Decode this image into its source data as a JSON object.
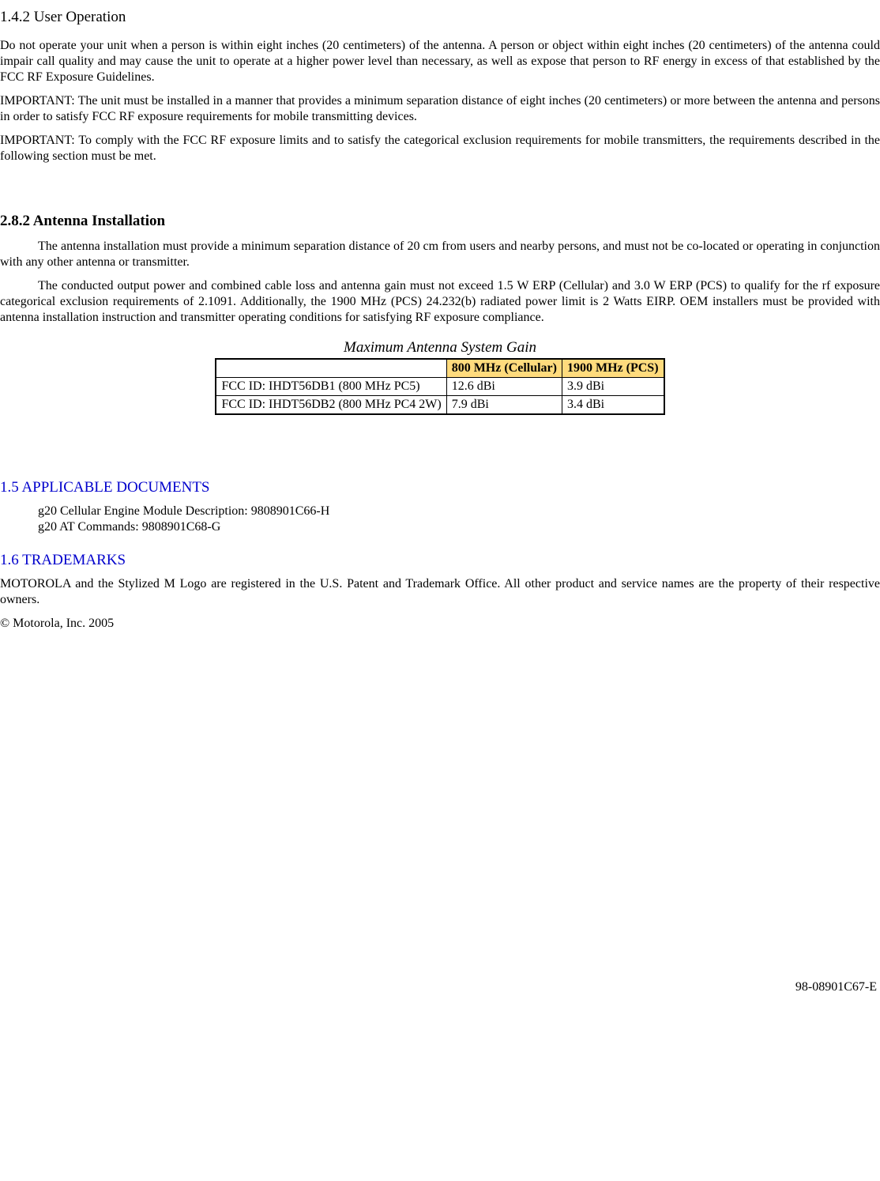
{
  "s142": {
    "heading": "1.4.2 User Operation",
    "p1": "Do not operate your unit when a person is within eight inches (20 centimeters) of the antenna. A person or object within eight inches (20 centimeters) of the antenna could impair call quality and may cause the unit to operate at a higher power level than necessary, as well as expose that person to RF energy in excess of that established by the FCC RF Exposure Guidelines.",
    "p2": "IMPORTANT: The unit must be installed in a manner that provides a minimum separation distance of eight inches (20 centimeters) or more between the antenna and persons in order to satisfy FCC RF exposure requirements for mobile transmitting devices.",
    "p3": "IMPORTANT: To comply with the FCC RF exposure limits and to satisfy the categorical exclusion requirements for mobile transmitters, the requirements described in the following section must be met."
  },
  "s282": {
    "heading": "2.8.2 Antenna Installation",
    "p1": "The antenna installation must provide a minimum separation distance of 20 cm from users and nearby persons, and must not be co-located or operating in conjunction with any other antenna or transmitter.",
    "p2": "The conducted output power and combined cable loss and antenna gain must not exceed 1.5 W ERP (Cellular) and 3.0 W ERP (PCS) to qualify for the rf exposure categorical exclusion requirements of 2.1091.  Additionally, the 1900 MHz (PCS) 24.232(b) radiated power limit is 2 Watts EIRP.   OEM installers must be provided with antenna installation instruction and transmitter operating conditions for satisfying RF exposure compliance."
  },
  "table": {
    "type": "table",
    "caption": "Maximum Antenna System Gain",
    "columns": [
      "",
      "800 MHz (Cellular)",
      "1900 MHz (PCS)"
    ],
    "header_bg": "#ffdb7d",
    "rows": [
      [
        "FCC ID: IHDT56DB1  (800 MHz PC5)",
        "12.6 dBi",
        "3.9 dBi"
      ],
      [
        "FCC ID: IHDT56DB2  (800 MHz PC4 2W)",
        "7.9 dBi",
        "3.4 dBi"
      ]
    ]
  },
  "s15": {
    "heading": "1.5 APPLICABLE DOCUMENTS",
    "line1": "g20 Cellular Engine Module Description: 9808901C66-H",
    "line2": "g20 AT Commands: 9808901C68-G"
  },
  "s16": {
    "heading": "1.6 TRADEMARKS",
    "p1": "MOTOROLA and the Stylized M Logo are registered in the U.S. Patent and Trademark Office. All other product and service names are the property of their respective owners.",
    "copyright": "© Motorola, Inc. 2005"
  },
  "footer": {
    "code": "98-08901C67-E"
  }
}
